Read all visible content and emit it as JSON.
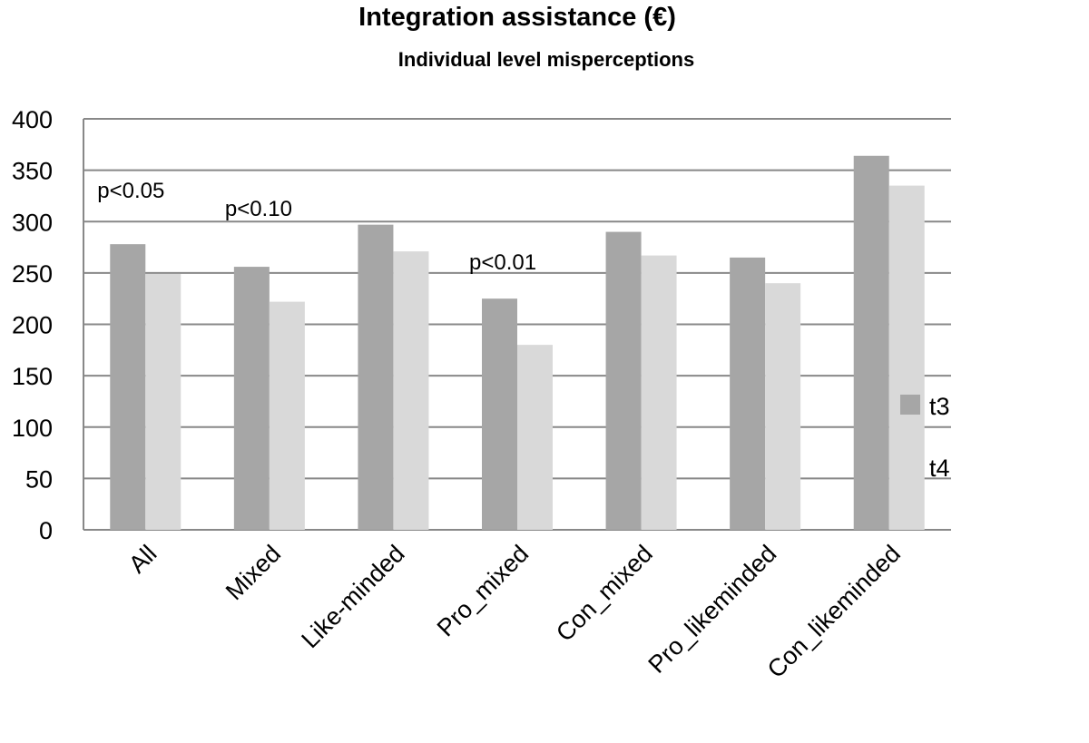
{
  "chart_data": {
    "type": "bar",
    "title": "Integration assistance (€)",
    "subtitle": "Individual level misperceptions",
    "xlabel": "",
    "ylabel": "",
    "ylim": [
      0,
      400
    ],
    "yticks": [
      0,
      50,
      100,
      150,
      200,
      250,
      300,
      350,
      400
    ],
    "grid": true,
    "legend_position": "right",
    "categories": [
      "All",
      "Mixed",
      "Like-minded",
      "Pro_mixed",
      "Con_mixed",
      "Pro_likeminded",
      "Con_likeminded"
    ],
    "series": [
      {
        "name": "t3",
        "color": "#a6a6a6",
        "values": [
          278,
          256,
          297,
          225,
          290,
          265,
          364
        ]
      },
      {
        "name": "t4",
        "color": "#d9d9d9",
        "values": [
          249,
          222,
          271,
          180,
          267,
          240,
          335
        ]
      }
    ],
    "annotations": [
      {
        "text": "p<0.05",
        "category": "All"
      },
      {
        "text": "p<0.10",
        "category": "Mixed"
      },
      {
        "text": "p<0.01",
        "category": "Pro_mixed"
      }
    ]
  }
}
